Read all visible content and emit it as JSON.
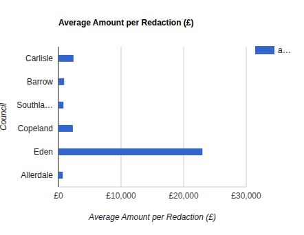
{
  "chart_data": {
    "type": "bar",
    "orientation": "horizontal",
    "title": "Average Amount per Redaction (£)",
    "x_label": "Average Amount per Redaction (£)",
    "y_label": "Council",
    "categories": [
      "Carlisle",
      "Barrow",
      "Southla…",
      "Copeland",
      "Eden",
      "Allerdale"
    ],
    "series": [
      {
        "name": "a…",
        "color": "#3366cc",
        "values": [
          2400,
          900,
          800,
          2300,
          23000,
          700
        ]
      }
    ],
    "xlim": [
      0,
      30000
    ],
    "xticks": [
      {
        "value": 0,
        "label": "£0"
      },
      {
        "value": 10000,
        "label": "£10,000"
      },
      {
        "value": 20000,
        "label": "£20,000"
      },
      {
        "value": 30000,
        "label": "£30,000"
      }
    ],
    "grid": true,
    "legend": "top-right"
  }
}
